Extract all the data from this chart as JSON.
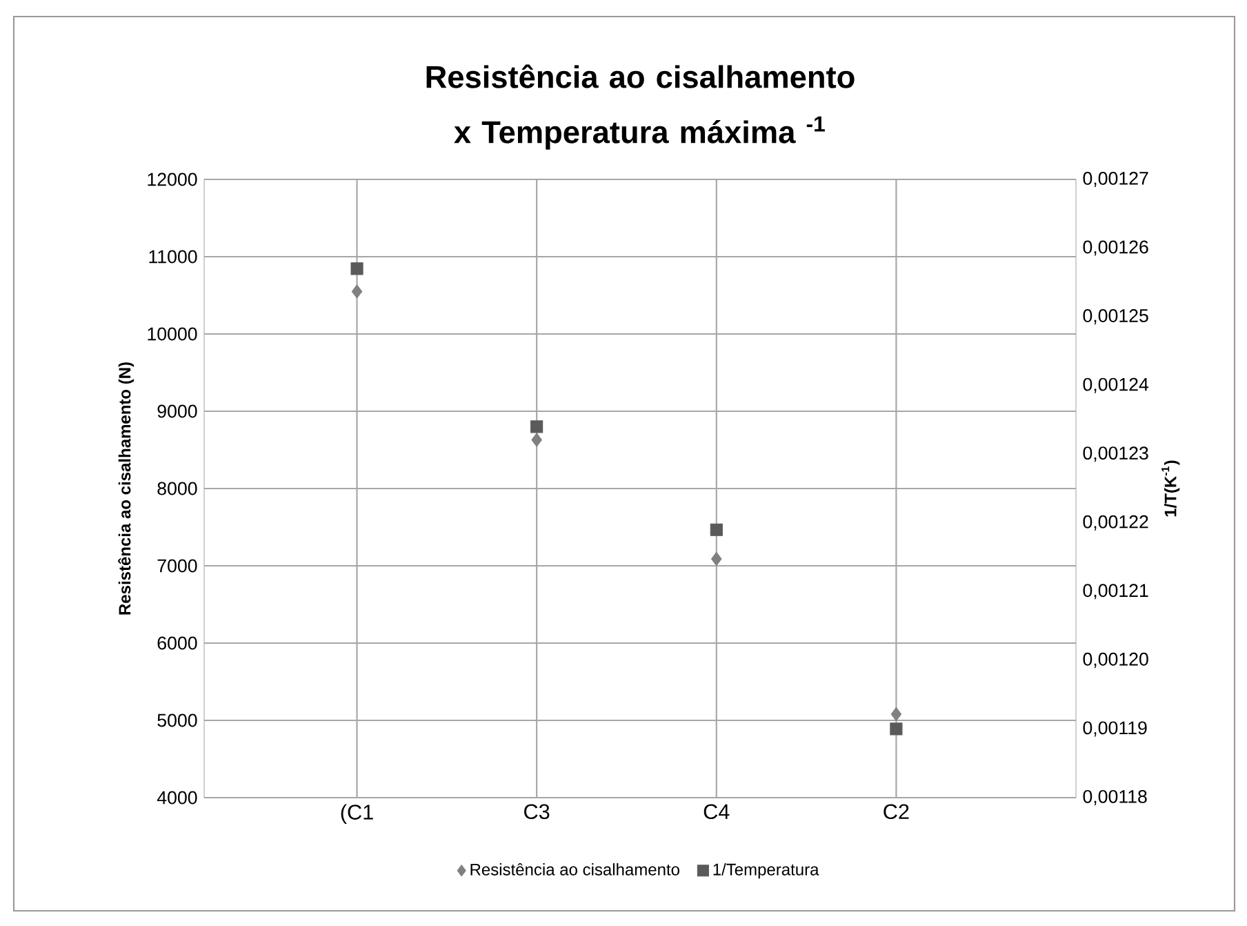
{
  "chart_data": {
    "type": "scatter",
    "title": "Resistência ao cisalhamento x Temperatura máxima $^{-1}$",
    "ylabel": "Resistência ao cisalhamento (N)",
    "y2label": "1/T(K$^{-1}$)",
    "categories": [
      "(C1",
      "C3",
      "C4",
      "C2"
    ],
    "series": [
      {
        "name": "Resistência ao cisalhamento",
        "color": "#808080",
        "marker": "diamond",
        "values": [
          10550,
          8630,
          7090,
          5080
        ]
      },
      {
        "name": "1/Temperatura",
        "color": "#5a5a5a",
        "marker": "square",
        "axis": "y2",
        "values": [
          0.001257,
          0.001234,
          0.001219,
          0.00119
        ]
      }
    ],
    "ylim": [
      4000,
      12000
    ],
    "yticks": [
      4000,
      5000,
      6000,
      7000,
      8000,
      9000,
      10000,
      11000,
      12000
    ],
    "y2lim": [
      0.00118,
      0.00127
    ],
    "y2ticks": [
      {
        "value": 0.00118,
        "label": "0,00118"
      },
      {
        "value": 0.00119,
        "label": "0,00119"
      },
      {
        "value": 0.0012,
        "label": "0,00120"
      },
      {
        "value": 0.00121,
        "label": "0,00121"
      },
      {
        "value": 0.00122,
        "label": "0,00122"
      },
      {
        "value": 0.00123,
        "label": "0,00123"
      },
      {
        "value": 0.00124,
        "label": "0,00124"
      },
      {
        "value": 0.00125,
        "label": "0,00125"
      },
      {
        "value": 0.00126,
        "label": "0,00126"
      },
      {
        "value": 0.00127,
        "label": "0,00127"
      }
    ],
    "grid": true,
    "legend": "bottom"
  }
}
